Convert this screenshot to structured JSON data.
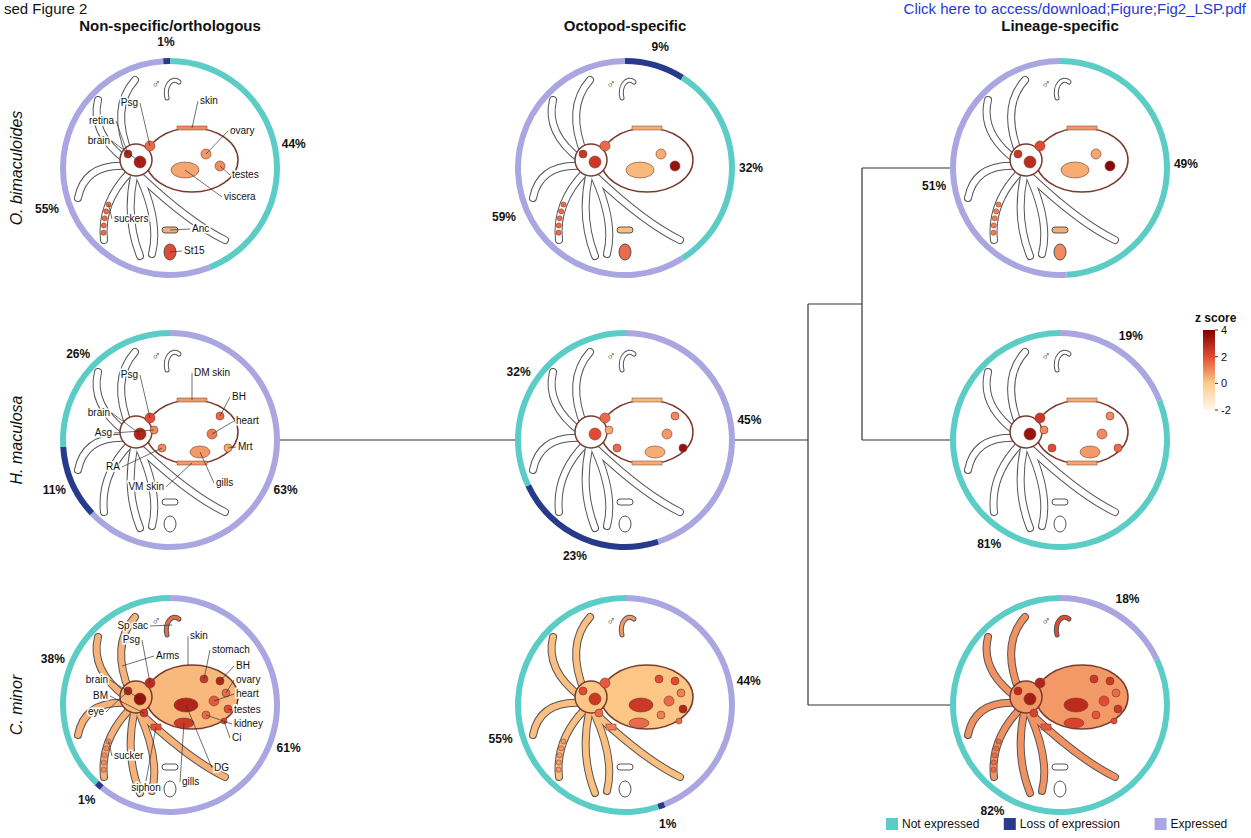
{
  "header": {
    "left": "sed Figure 2",
    "right": "Click here to access/download;Figure;Fig2_LSP.pdf"
  },
  "columns": [
    "Non-specific/orthologous",
    "Octopod-specific",
    "Lineage-specific"
  ],
  "sex_symbol": "♂",
  "species": [
    {
      "name": "O. bimaculoides",
      "tissues": [
        "Psg",
        "skin",
        "retina",
        "brain",
        "ovary",
        "testes",
        "viscera",
        "suckers",
        "Anc",
        "St15"
      ],
      "z": [
        [
          1.5,
          1.0,
          3.0,
          3.2,
          0.8,
          1.0,
          0.6,
          1.5,
          0.5,
          2.0
        ],
        [
          1.5,
          0.5,
          2.5,
          2.5,
          0.5,
          3.5,
          0.3,
          1.5,
          0.2,
          1.5
        ],
        [
          2.0,
          0.8,
          2.5,
          2.8,
          0.6,
          3.8,
          0.5,
          1.2,
          0.5,
          1.0
        ]
      ]
    },
    {
      "name": "H. maculosa",
      "tissues": [
        "Psg",
        "DM skin",
        "BH",
        "brain",
        "heart",
        "Asg",
        "Mrt",
        "gills",
        "RA",
        "VM skin"
      ],
      "z": [
        [
          2.0,
          0.8,
          1.5,
          3.0,
          1.2,
          1.0,
          0.5,
          0.8,
          1.0,
          0.8
        ],
        [
          1.5,
          0.3,
          1.0,
          2.0,
          0.8,
          0.5,
          3.5,
          0.5,
          1.5,
          0.5
        ],
        [
          2.5,
          0.5,
          1.0,
          3.5,
          1.0,
          1.0,
          1.5,
          0.8,
          2.0,
          0.6
        ]
      ]
    },
    {
      "name": "C. minor",
      "tissues": [
        "Sp sac",
        "skin",
        "stomach",
        "Psg",
        "BH",
        "ovary",
        "Arms",
        "heart",
        "brain",
        "testes",
        "BM",
        "kidney",
        "Ci",
        "sucker",
        "eye",
        "siphon",
        "gills",
        "DG"
      ],
      "z": [
        [
          1.5,
          0.3,
          2.5,
          2.8,
          3.0,
          1.5,
          0.4,
          1.8,
          3.5,
          2.0,
          2.5,
          1.5,
          2.2,
          1.0,
          3.0,
          2.0,
          2.5,
          3.0
        ],
        [
          0.8,
          0.1,
          2.0,
          1.8,
          2.0,
          1.2,
          0.2,
          1.5,
          2.5,
          3.0,
          1.5,
          1.2,
          1.5,
          0.8,
          2.0,
          1.2,
          1.5,
          2.5
        ],
        [
          2.0,
          0.8,
          2.5,
          3.0,
          2.5,
          1.5,
          0.9,
          2.0,
          3.2,
          2.5,
          2.2,
          1.8,
          2.0,
          1.5,
          2.8,
          1.8,
          2.2,
          2.8
        ]
      ]
    }
  ],
  "color_bar": {
    "title": "z score",
    "range": [
      -2,
      4
    ],
    "ticks": [
      -2,
      0,
      2,
      4
    ],
    "colors": [
      "#fff7ec",
      "#fdcc8a",
      "#e34a33",
      "#7f0000"
    ]
  },
  "legend": "bottom right",
  "legend_items": [
    {
      "name": "Not expressed",
      "color": "#5ccdc6"
    },
    {
      "name": "Loss of expression",
      "color": "#273a8c"
    },
    {
      "name": "Expressed",
      "color": "#aaa6e2"
    }
  ],
  "chart_data": [
    {
      "type": "pie",
      "categories": [
        "Not expressed",
        "Expressed",
        "Loss of expression"
      ],
      "values": [
        44,
        55,
        1
      ],
      "value_labels": [
        "44%",
        "55%",
        "1%"
      ],
      "data_labels": true
    },
    {
      "type": "pie",
      "categories": [
        "Loss of expression",
        "Not expressed",
        "Expressed"
      ],
      "values": [
        9,
        32,
        59
      ],
      "value_labels": [
        "9%",
        "32%",
        "59%"
      ],
      "data_labels": true
    },
    {
      "type": "pie",
      "categories": [
        "Not expressed",
        "Expressed"
      ],
      "values": [
        49,
        51
      ],
      "value_labels": [
        "49%",
        "51%"
      ],
      "data_labels": true
    },
    {
      "type": "pie",
      "categories": [
        "Expressed",
        "Loss of expression",
        "Not expressed"
      ],
      "values": [
        63,
        11,
        26
      ],
      "value_labels": [
        "63%",
        "11%",
        "26%"
      ],
      "data_labels": true
    },
    {
      "type": "pie",
      "categories": [
        "Expressed",
        "Loss of expression",
        "Not expressed"
      ],
      "values": [
        45,
        23,
        32
      ],
      "value_labels": [
        "45%",
        "23%",
        "32%"
      ],
      "data_labels": true
    },
    {
      "type": "pie",
      "categories": [
        "Expressed",
        "Not expressed"
      ],
      "values": [
        19,
        81
      ],
      "value_labels": [
        "19%",
        "81%"
      ],
      "data_labels": true
    },
    {
      "type": "pie",
      "categories": [
        "Expressed",
        "Loss of expression",
        "Not expressed"
      ],
      "values": [
        61,
        1,
        38
      ],
      "value_labels": [
        "61%",
        "1%",
        "38%"
      ],
      "data_labels": true
    },
    {
      "type": "pie",
      "categories": [
        "Expressed",
        "Loss of expression",
        "Not expressed"
      ],
      "values": [
        44,
        1,
        55
      ],
      "value_labels": [
        "44%",
        "1%",
        "55%"
      ],
      "data_labels": true
    },
    {
      "type": "pie",
      "categories": [
        "Expressed",
        "Not expressed"
      ],
      "values": [
        18,
        82
      ],
      "value_labels": [
        "18%",
        "82%"
      ],
      "data_labels": true
    }
  ]
}
